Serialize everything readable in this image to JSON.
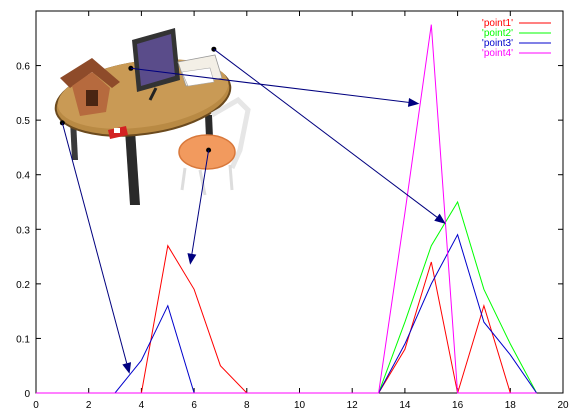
{
  "chart_data": {
    "type": "line",
    "xlim": [
      0,
      20
    ],
    "ylim": [
      0,
      0.7
    ],
    "x_ticks": [
      "0",
      "2",
      "4",
      "6",
      "8",
      "10",
      "12",
      "14",
      "16",
      "18",
      "20"
    ],
    "y_ticks": [
      "0",
      "0.1",
      "0.2",
      "0.3",
      "0.4",
      "0.5",
      "0.6"
    ],
    "legend_position": "top-right",
    "grid": false,
    "series": [
      {
        "name": "'point1'",
        "color": "#ff0000",
        "points": [
          [
            0,
            0
          ],
          [
            1,
            0
          ],
          [
            2,
            0
          ],
          [
            3,
            0
          ],
          [
            4,
            0
          ],
          [
            5,
            0.27
          ],
          [
            6,
            0.19
          ],
          [
            7,
            0.05
          ],
          [
            8,
            0
          ],
          [
            9,
            0
          ],
          [
            10,
            0
          ],
          [
            11,
            0
          ],
          [
            12,
            0
          ],
          [
            13,
            0
          ],
          [
            14,
            0.08
          ],
          [
            15,
            0.24
          ],
          [
            16,
            0
          ],
          [
            17,
            0.16
          ],
          [
            18,
            0
          ],
          [
            19,
            0
          ]
        ]
      },
      {
        "name": "'point2'",
        "color": "#00ff00",
        "points": [
          [
            0,
            0
          ],
          [
            1,
            0
          ],
          [
            2,
            0
          ],
          [
            3,
            0
          ],
          [
            4,
            0
          ],
          [
            5,
            0
          ],
          [
            6,
            0
          ],
          [
            7,
            0
          ],
          [
            8,
            0
          ],
          [
            9,
            0
          ],
          [
            10,
            0
          ],
          [
            11,
            0
          ],
          [
            12,
            0
          ],
          [
            13,
            0
          ],
          [
            14,
            0.13
          ],
          [
            15,
            0.27
          ],
          [
            16,
            0.35
          ],
          [
            17,
            0.19
          ],
          [
            18,
            0.09
          ],
          [
            19,
            0
          ]
        ]
      },
      {
        "name": "'point3'",
        "color": "#0000cc",
        "points": [
          [
            0,
            0
          ],
          [
            1,
            0
          ],
          [
            2,
            0
          ],
          [
            3,
            0
          ],
          [
            4,
            0.06
          ],
          [
            5,
            0.16
          ],
          [
            6,
            0
          ],
          [
            7,
            0
          ],
          [
            8,
            0
          ],
          [
            9,
            0
          ],
          [
            10,
            0
          ],
          [
            11,
            0
          ],
          [
            12,
            0
          ],
          [
            13,
            0
          ],
          [
            14,
            0.09
          ],
          [
            15,
            0.2
          ],
          [
            16,
            0.29
          ],
          [
            17,
            0.13
          ],
          [
            18,
            0.07
          ],
          [
            19,
            0
          ]
        ]
      },
      {
        "name": "'point4'",
        "color": "#ff00ff",
        "points": [
          [
            0,
            0
          ],
          [
            1,
            0
          ],
          [
            2,
            0
          ],
          [
            3,
            0
          ],
          [
            4,
            0
          ],
          [
            5,
            0
          ],
          [
            6,
            0
          ],
          [
            7,
            0
          ],
          [
            8,
            0
          ],
          [
            9,
            0
          ],
          [
            10,
            0
          ],
          [
            11,
            0
          ],
          [
            12,
            0
          ],
          [
            13,
            0
          ],
          [
            14,
            0.33
          ],
          [
            15,
            0.675
          ],
          [
            16,
            0
          ],
          [
            17,
            0
          ],
          [
            18,
            0
          ],
          [
            19,
            0
          ]
        ]
      }
    ],
    "arrows_color": "#00007f",
    "arrows": [
      {
        "from_marker": [
          1.0,
          0.495
        ],
        "to_point": [
          3.55,
          0.035
        ]
      },
      {
        "from_marker": [
          6.55,
          0.445
        ],
        "to_point": [
          5.85,
          0.235
        ]
      },
      {
        "from_marker": [
          3.6,
          0.595
        ],
        "to_point": [
          14.55,
          0.53
        ]
      },
      {
        "from_marker": [
          6.75,
          0.63
        ],
        "to_point": [
          15.55,
          0.31
        ]
      }
    ],
    "inset_image": {
      "description_icon": "photo-of-table-scene",
      "colors": {
        "table": "#b98a44",
        "chair_seat": "#f29a5e",
        "monitor": "#333333",
        "screen": "#5a4c8a",
        "house": "#8e4b2a"
      }
    }
  }
}
